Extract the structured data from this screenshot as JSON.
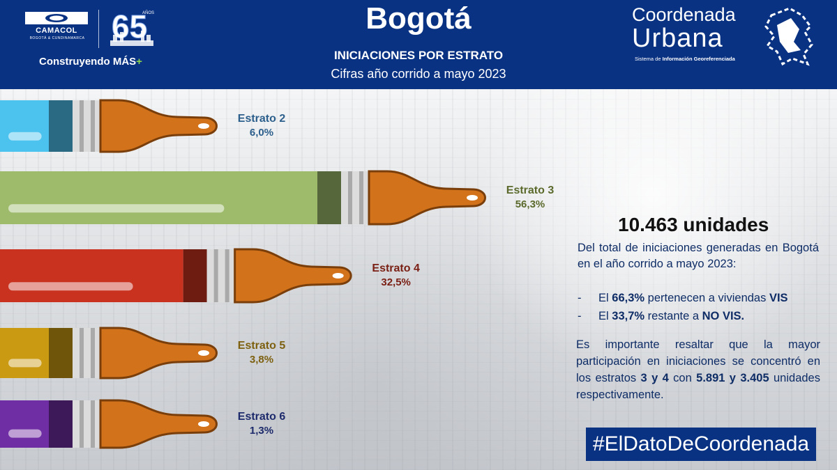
{
  "header": {
    "brand": "CAMACOL",
    "brand_sub": "BOGOTÁ & CUNDINAMARCA",
    "anniversary": "65",
    "anniversary_unit": "AÑOS",
    "tagline": "Construyendo MÁS",
    "tagline_plus": "+",
    "title": "Bogotá",
    "subtitle": "INICIACIONES POR ESTRATO",
    "period": "Cifras año corrido a mayo 2023",
    "right_logo_line1": "Coordenada",
    "right_logo_line2": "Urbana",
    "right_logo_sub_a": "Sistema de ",
    "right_logo_sub_b": "Información Georeferenciada"
  },
  "colors": {
    "header_bg": "#0a3283",
    "estrato_2": "#4cc3ef",
    "estrato_3": "#9dbb6b",
    "estrato_4": "#c8321f",
    "estrato_5": "#c99a12",
    "estrato_6": "#6f2ea3",
    "handle": "#d2731c"
  },
  "chart_data": {
    "type": "bar",
    "title": "INICIACIONES POR ESTRATO",
    "categories": [
      "Estrato 2",
      "Estrato 3",
      "Estrato 4",
      "Estrato 5",
      "Estrato 6"
    ],
    "values": [
      6.0,
      56.3,
      32.5,
      3.8,
      1.3
    ],
    "value_labels": [
      "6,0%",
      "56,3%",
      "32,5%",
      "3,8%",
      "1,3%"
    ],
    "unit": "%",
    "orientation": "horizontal",
    "legend": "none"
  },
  "summary": {
    "total": "10.463 unidades",
    "intro": "Del total de iniciaciones generadas en Bogotá en el año corrido a mayo 2023:",
    "bullets": [
      {
        "dash": "-",
        "pre": "El ",
        "value": "66,3%",
        "mid": " pertenecen a viviendas ",
        "tag": "VIS"
      },
      {
        "dash": "-",
        "pre": "El ",
        "value": "33,7%",
        "mid": " restante a ",
        "tag": "NO VIS."
      }
    ],
    "detail_a": "Es importante resaltar que la mayor participación en iniciaciones se concentró en los estratos ",
    "detail_b": "3 y 4",
    "detail_c": " con ",
    "detail_d": "5.891 y 3.405",
    "detail_e": " unidades respectivamente."
  },
  "hashtag": "#ElDatoDeCoordenada"
}
